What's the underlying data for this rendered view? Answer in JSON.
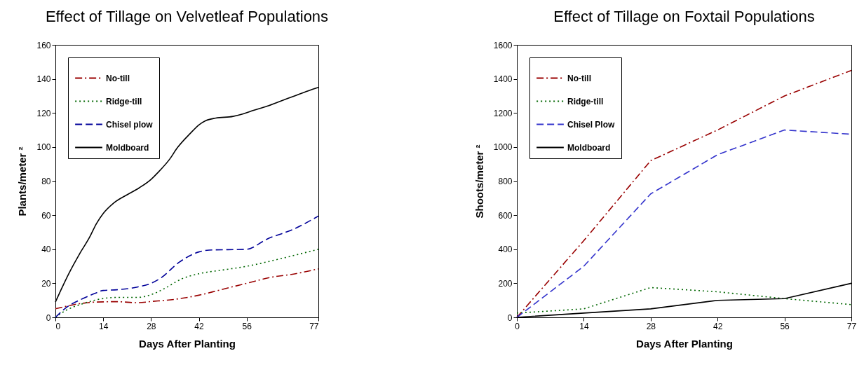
{
  "chart_data": [
    {
      "type": "line",
      "title": "Effect of Tillage on Velvetleaf Populations",
      "xlabel": "Days After Planting",
      "ylabel": "Plants/meter ²",
      "xlim": [
        0,
        77
      ],
      "xticks": [
        0,
        14,
        28,
        42,
        56,
        77
      ],
      "ylim": [
        0,
        160
      ],
      "yticks": [
        0,
        20,
        40,
        60,
        80,
        100,
        120,
        140,
        160
      ],
      "legend": "top left",
      "series": [
        {
          "name": "No-till",
          "color": "#990000",
          "line_style": "dashdot",
          "x": [
            0,
            7,
            12,
            18,
            24,
            28,
            35,
            42,
            48,
            56,
            63,
            70,
            77
          ],
          "values": [
            5,
            8,
            9,
            9.2,
            8.6,
            9.3,
            10.6,
            13,
            16,
            20,
            23.5,
            25.5,
            28.5
          ]
        },
        {
          "name": "Ridge-till",
          "color": "#006600",
          "line_style": "dotted",
          "x": [
            0,
            3,
            8,
            12,
            18,
            24,
            28,
            32,
            37,
            42,
            49,
            56,
            65,
            77
          ],
          "values": [
            0,
            4,
            8,
            10.3,
            11.7,
            11.7,
            13.3,
            17,
            22.6,
            25.6,
            27.8,
            30,
            34,
            40
          ]
        },
        {
          "name": "Chisel plow",
          "color": "#000099",
          "line_style": "dashed",
          "x": [
            0,
            3,
            8,
            12,
            14,
            18,
            24,
            28,
            31,
            36,
            42,
            45,
            56,
            62,
            70,
            77
          ],
          "values": [
            0,
            5.5,
            11,
            14.4,
            15.8,
            16.2,
            17.8,
            20,
            23.3,
            32,
            38.4,
            39.5,
            40,
            46,
            52,
            59.5
          ]
        },
        {
          "name": "Moldboard",
          "color": "#000000",
          "line_style": "solid",
          "x": [
            0,
            1.6,
            4,
            7,
            10,
            12,
            14,
            17,
            21,
            24.5,
            28,
            30,
            33.5,
            35.5,
            39.5,
            42,
            44,
            47,
            52,
            55,
            58,
            62,
            66,
            70,
            74,
            77
          ],
          "values": [
            9,
            16,
            26,
            37,
            47,
            55,
            61,
            67,
            72,
            76,
            81,
            85,
            93,
            99,
            108,
            113,
            115.5,
            117,
            118,
            119.5,
            121.5,
            124,
            127,
            130,
            133,
            135
          ]
        }
      ]
    },
    {
      "type": "line",
      "title": "Effect of Tillage on Foxtail Populations",
      "xlabel": "Days After Planting",
      "ylabel": "Shoots/meter ²",
      "categories": [
        "0",
        "14",
        "28",
        "42",
        "56",
        "77"
      ],
      "ylim": [
        0,
        1600
      ],
      "yticks": [
        0,
        200,
        400,
        600,
        800,
        1000,
        1200,
        1400,
        1600
      ],
      "legend": "top left",
      "series": [
        {
          "name": "No-till",
          "color": "#990000",
          "line_style": "dashdot",
          "values": [
            0,
            450,
            920,
            1100,
            1300,
            1450
          ]
        },
        {
          "name": "Ridge-till",
          "color": "#006600",
          "line_style": "dotted",
          "values": [
            25,
            50,
            175,
            150,
            110,
            75
          ]
        },
        {
          "name": "Chisel Plow",
          "color": "#3333cc",
          "line_style": "dashed",
          "values": [
            0,
            300,
            725,
            955,
            1100,
            1075
          ]
        },
        {
          "name": "Moldboard",
          "color": "#000000",
          "line_style": "solid",
          "values": [
            0,
            25,
            50,
            100,
            110,
            200
          ]
        }
      ]
    }
  ]
}
